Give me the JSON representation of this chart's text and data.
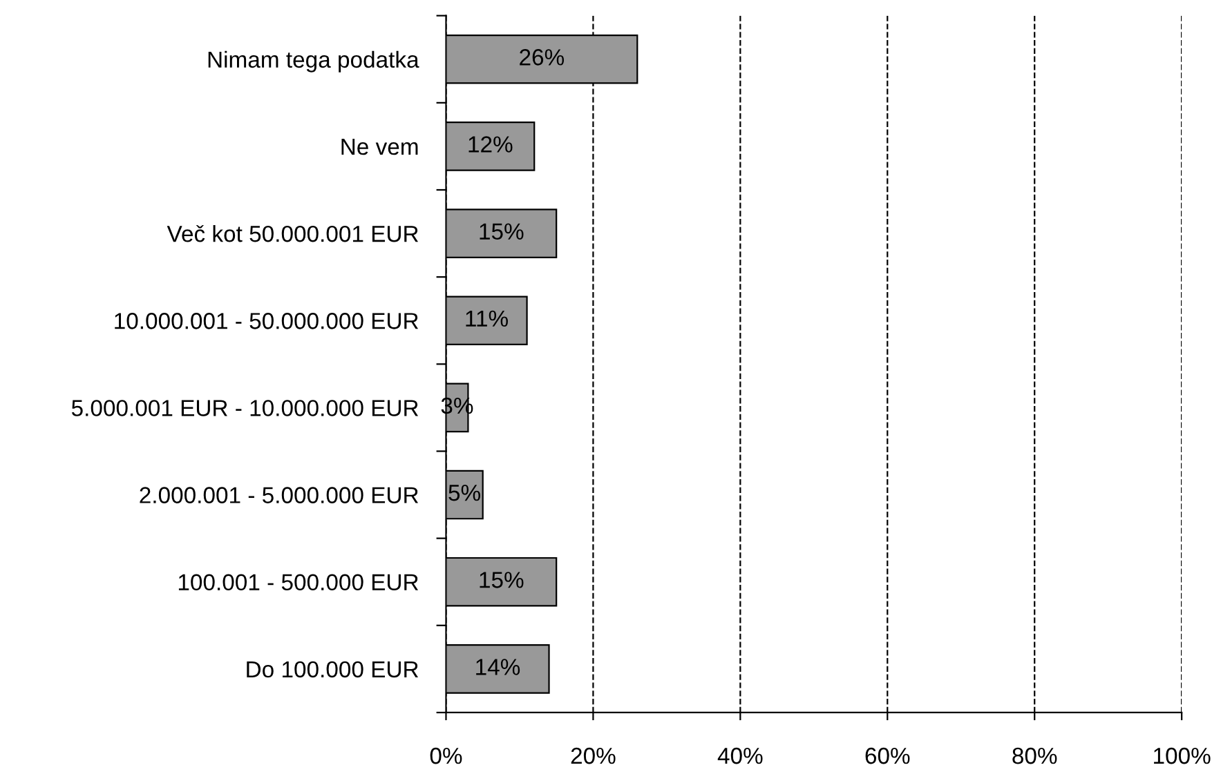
{
  "chart_data": {
    "type": "bar",
    "orientation": "horizontal",
    "categories": [
      "Nimam tega podatka",
      "Ne vem",
      "Več kot 50.000.001 EUR",
      "10.000.001 - 50.000.000 EUR",
      "5.000.001 EUR - 10.000.000 EUR",
      "2.000.001 - 5.000.000 EUR",
      "100.001 - 500.000 EUR",
      "Do 100.000 EUR"
    ],
    "values": [
      26,
      12,
      15,
      11,
      3,
      5,
      15,
      14
    ],
    "value_labels": [
      "26%",
      "12%",
      "15%",
      "11%",
      "3%",
      "5%",
      "15%",
      "14%"
    ],
    "color": "#999999",
    "xlim": [
      0,
      100
    ],
    "xticks": [
      {
        "value": 0,
        "label": "0%"
      },
      {
        "value": 20,
        "label": "20%"
      },
      {
        "value": 40,
        "label": "40%"
      },
      {
        "value": 60,
        "label": "60%"
      },
      {
        "value": 80,
        "label": "80%"
      },
      {
        "value": 100,
        "label": "100%"
      }
    ],
    "grid": "x",
    "line_style": "dashed",
    "legend": false
  }
}
